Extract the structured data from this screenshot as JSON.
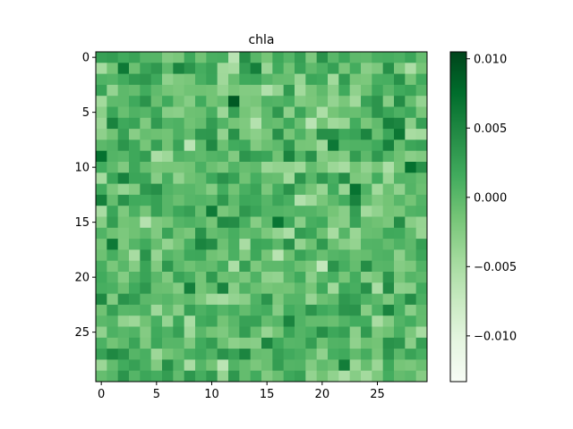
{
  "chart_data": {
    "type": "heatmap",
    "title": "chla",
    "xlabel": "",
    "ylabel": "",
    "rows": 30,
    "cols": 30,
    "x_ticks": [
      0,
      5,
      10,
      15,
      20,
      25
    ],
    "y_ticks": [
      0,
      5,
      10,
      15,
      20,
      25
    ],
    "colorbar": {
      "ticks": [
        0.01,
        0.005,
        0.0,
        -0.005,
        -0.01
      ],
      "tick_labels": [
        "0.010",
        "0.005",
        "0.000",
        "−0.005",
        "−0.010"
      ],
      "vmin": -0.0133,
      "vmax": 0.0105,
      "colormap": "Greens",
      "stops": [
        "#f7fcf5",
        "#e5f5e0",
        "#c7e9c0",
        "#a1d99b",
        "#74c476",
        "#41ab5d",
        "#238b45",
        "#006d2c",
        "#00441b"
      ]
    },
    "grid": false,
    "values_note_seed": 20240607
  }
}
